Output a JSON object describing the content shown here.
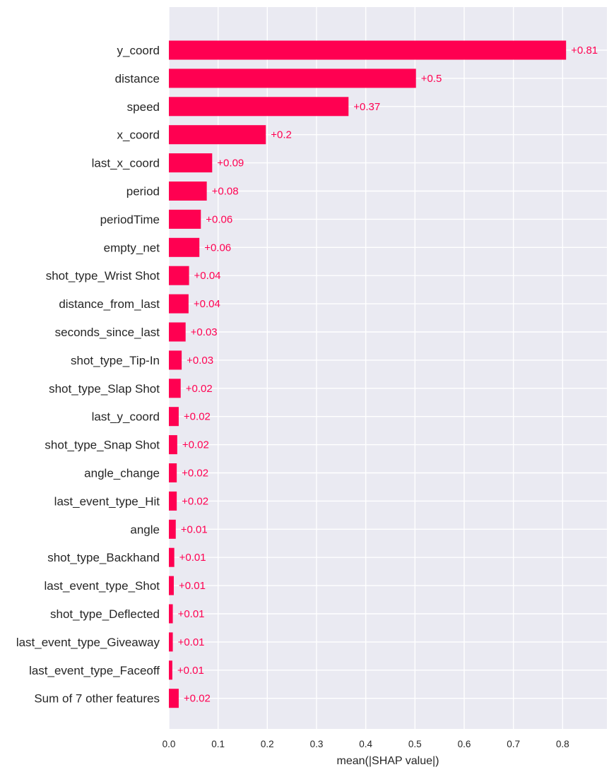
{
  "colors": {
    "bar": "#ff0051",
    "plot_bg": "#eaeaf2",
    "grid": "#ffffff",
    "text": "#262626"
  },
  "chart_data": {
    "type": "bar",
    "orientation": "horizontal",
    "xlabel": "mean(|SHAP value|)",
    "xlim": [
      0,
      0.89
    ],
    "xticks": [
      "0.0",
      "0.1",
      "0.2",
      "0.3",
      "0.4",
      "0.5",
      "0.6",
      "0.7",
      "0.8"
    ],
    "grid": true,
    "categories": [
      "y_coord",
      "distance",
      "speed",
      "x_coord",
      "last_x_coord",
      "period",
      "periodTime",
      "empty_net",
      "shot_type_Wrist Shot",
      "distance_from_last",
      "seconds_since_last",
      "shot_type_Tip-In",
      "shot_type_Slap Shot",
      "last_y_coord",
      "shot_type_Snap Shot",
      "angle_change",
      "last_event_type_Hit",
      "angle",
      "shot_type_Backhand",
      "last_event_type_Shot",
      "shot_type_Deflected",
      "last_event_type_Giveaway",
      "last_event_type_Faceoff",
      "Sum of 7 other features"
    ],
    "values": [
      0.807,
      0.502,
      0.365,
      0.197,
      0.088,
      0.077,
      0.065,
      0.062,
      0.041,
      0.04,
      0.034,
      0.026,
      0.024,
      0.02,
      0.017,
      0.016,
      0.016,
      0.014,
      0.011,
      0.01,
      0.008,
      0.008,
      0.007,
      0.02
    ],
    "value_labels": [
      "+0.81",
      "+0.5",
      "+0.37",
      "+0.2",
      "+0.09",
      "+0.08",
      "+0.06",
      "+0.06",
      "+0.04",
      "+0.04",
      "+0.03",
      "+0.03",
      "+0.02",
      "+0.02",
      "+0.02",
      "+0.02",
      "+0.02",
      "+0.01",
      "+0.01",
      "+0.01",
      "+0.01",
      "+0.01",
      "+0.01",
      "+0.02"
    ]
  }
}
